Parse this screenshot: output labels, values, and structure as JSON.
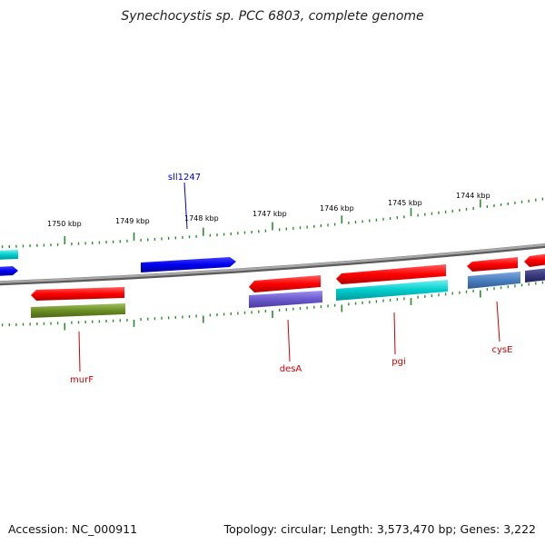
{
  "title": "Synechocystis sp. PCC 6803, complete genome",
  "footer": {
    "accession": "Accession: NC_000911",
    "summary": "Topology: circular; Length: 3,573,470 bp; Genes: 3,222"
  },
  "ruler_labels": [
    {
      "label": "1750 kbp"
    },
    {
      "label": "1749 kbp"
    },
    {
      "label": "1748 kbp"
    },
    {
      "label": "1747 kbp"
    },
    {
      "label": "1746 kbp"
    },
    {
      "label": "1745 kbp"
    },
    {
      "label": "1744 kbp"
    }
  ],
  "gene_labels": [
    {
      "name": "sll1247",
      "color": "#0000cc"
    },
    {
      "name": "murF",
      "color": "#cc0000"
    },
    {
      "name": "desA",
      "color": "#cc0000"
    },
    {
      "name": "pgi",
      "color": "#cc0000"
    },
    {
      "name": "cysE",
      "color": "#cc0000"
    }
  ],
  "colors": {
    "backbone": "#8c8c8c",
    "tick": "#2e8b2e",
    "forward_gene": "#0000ee",
    "reverse_gene": "#ee0000",
    "cyan": "#00cccc",
    "olive": "#6b8e23",
    "purple": "#6a5acd",
    "steelblue": "#4a7fc0"
  }
}
